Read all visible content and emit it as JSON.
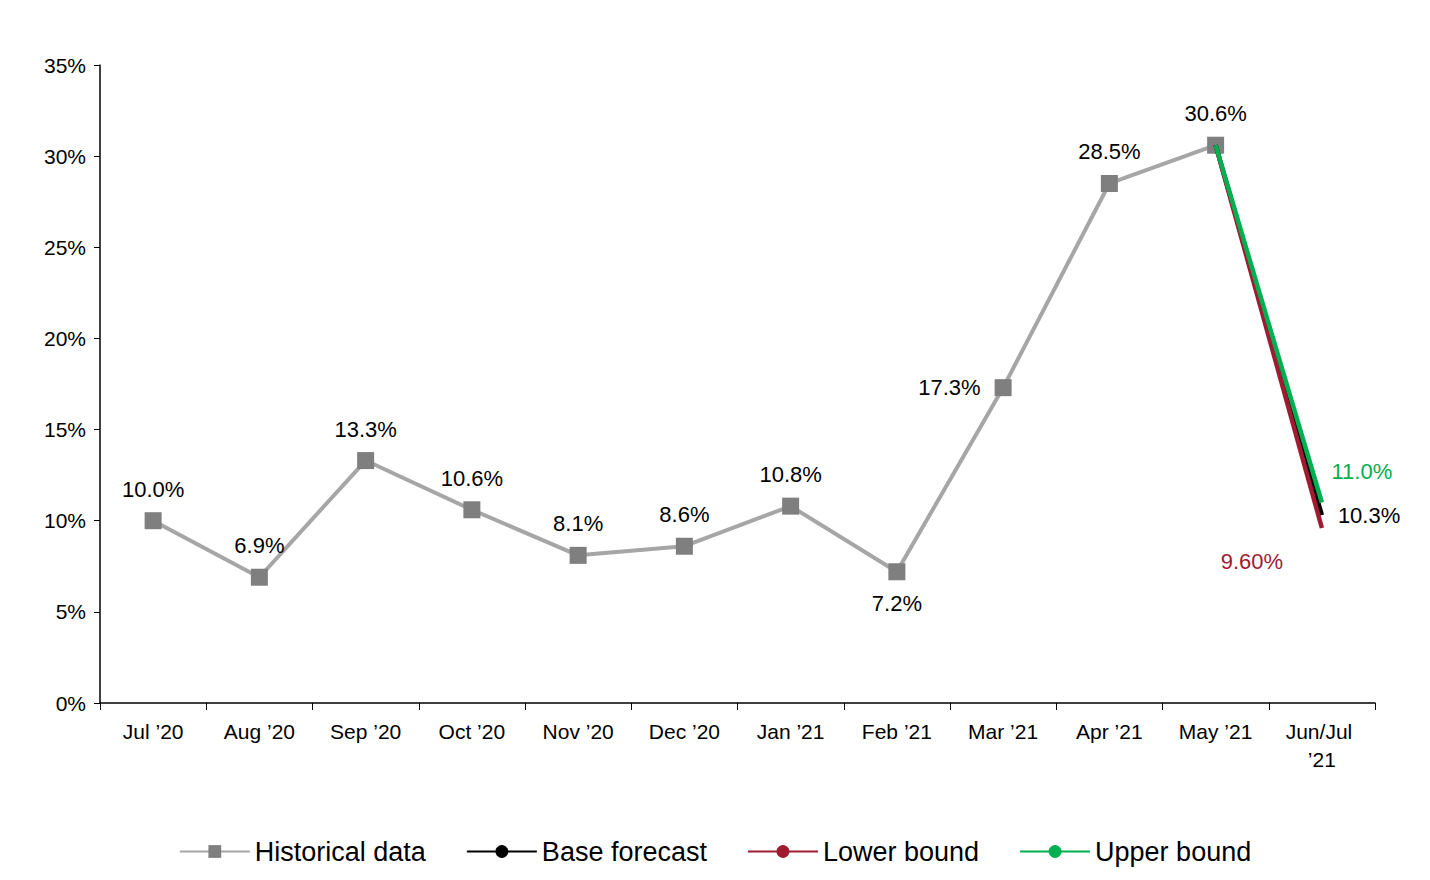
{
  "chart_data": {
    "type": "line",
    "categories": [
      "Jul ’20",
      "Aug ’20",
      "Sep ’20",
      "Oct ’20",
      "Nov ’20",
      "Dec ’20",
      "Jan ’21",
      "Feb ’21",
      "Mar ’21",
      "Apr ’21",
      "May ’21",
      "Jun/Jul ’21"
    ],
    "series": [
      {
        "name": "Historical data",
        "color": "#a6a6a6",
        "marker": "square",
        "line_style": "solid",
        "values": [
          10.0,
          6.9,
          13.3,
          10.6,
          8.1,
          8.6,
          10.8,
          7.2,
          17.3,
          28.5,
          30.6,
          null
        ],
        "value_labels": [
          "10.0%",
          "6.9%",
          "13.3%",
          "10.6%",
          "8.1%",
          "8.6%",
          "10.8%",
          "7.2%",
          "17.3%",
          "28.5%",
          "30.6%",
          null
        ]
      },
      {
        "name": "Base forecast",
        "color": "#000000",
        "marker": "none",
        "line_style": "solid",
        "values": [
          null,
          null,
          null,
          null,
          null,
          null,
          null,
          null,
          null,
          null,
          30.6,
          10.3
        ],
        "value_labels": [
          null,
          null,
          null,
          null,
          null,
          null,
          null,
          null,
          null,
          null,
          null,
          "10.3%"
        ]
      },
      {
        "name": "Lower bound",
        "color": "#9e1b32",
        "marker": "none",
        "line_style": "solid",
        "values": [
          null,
          null,
          null,
          null,
          null,
          null,
          null,
          null,
          null,
          null,
          30.6,
          9.6
        ],
        "value_labels": [
          null,
          null,
          null,
          null,
          null,
          null,
          null,
          null,
          null,
          null,
          null,
          "9.60%"
        ]
      },
      {
        "name": "Upper bound",
        "color": "#00b050",
        "marker": "none",
        "line_style": "solid",
        "values": [
          null,
          null,
          null,
          null,
          null,
          null,
          null,
          null,
          null,
          null,
          30.6,
          11.0
        ],
        "value_labels": [
          null,
          null,
          null,
          null,
          null,
          null,
          null,
          null,
          null,
          null,
          null,
          "11.0%"
        ]
      }
    ],
    "ylim": [
      0,
      35
    ],
    "yticks": [
      {
        "value": 0,
        "label": "0%"
      },
      {
        "value": 5,
        "label": "5%"
      },
      {
        "value": 10,
        "label": "10%"
      },
      {
        "value": 15,
        "label": "15%"
      },
      {
        "value": 20,
        "label": "20%"
      },
      {
        "value": 25,
        "label": "25%"
      },
      {
        "value": 30,
        "label": "30%"
      },
      {
        "value": 35,
        "label": "35%"
      }
    ],
    "grid": false,
    "legend": "bottom",
    "data_labels": true
  }
}
